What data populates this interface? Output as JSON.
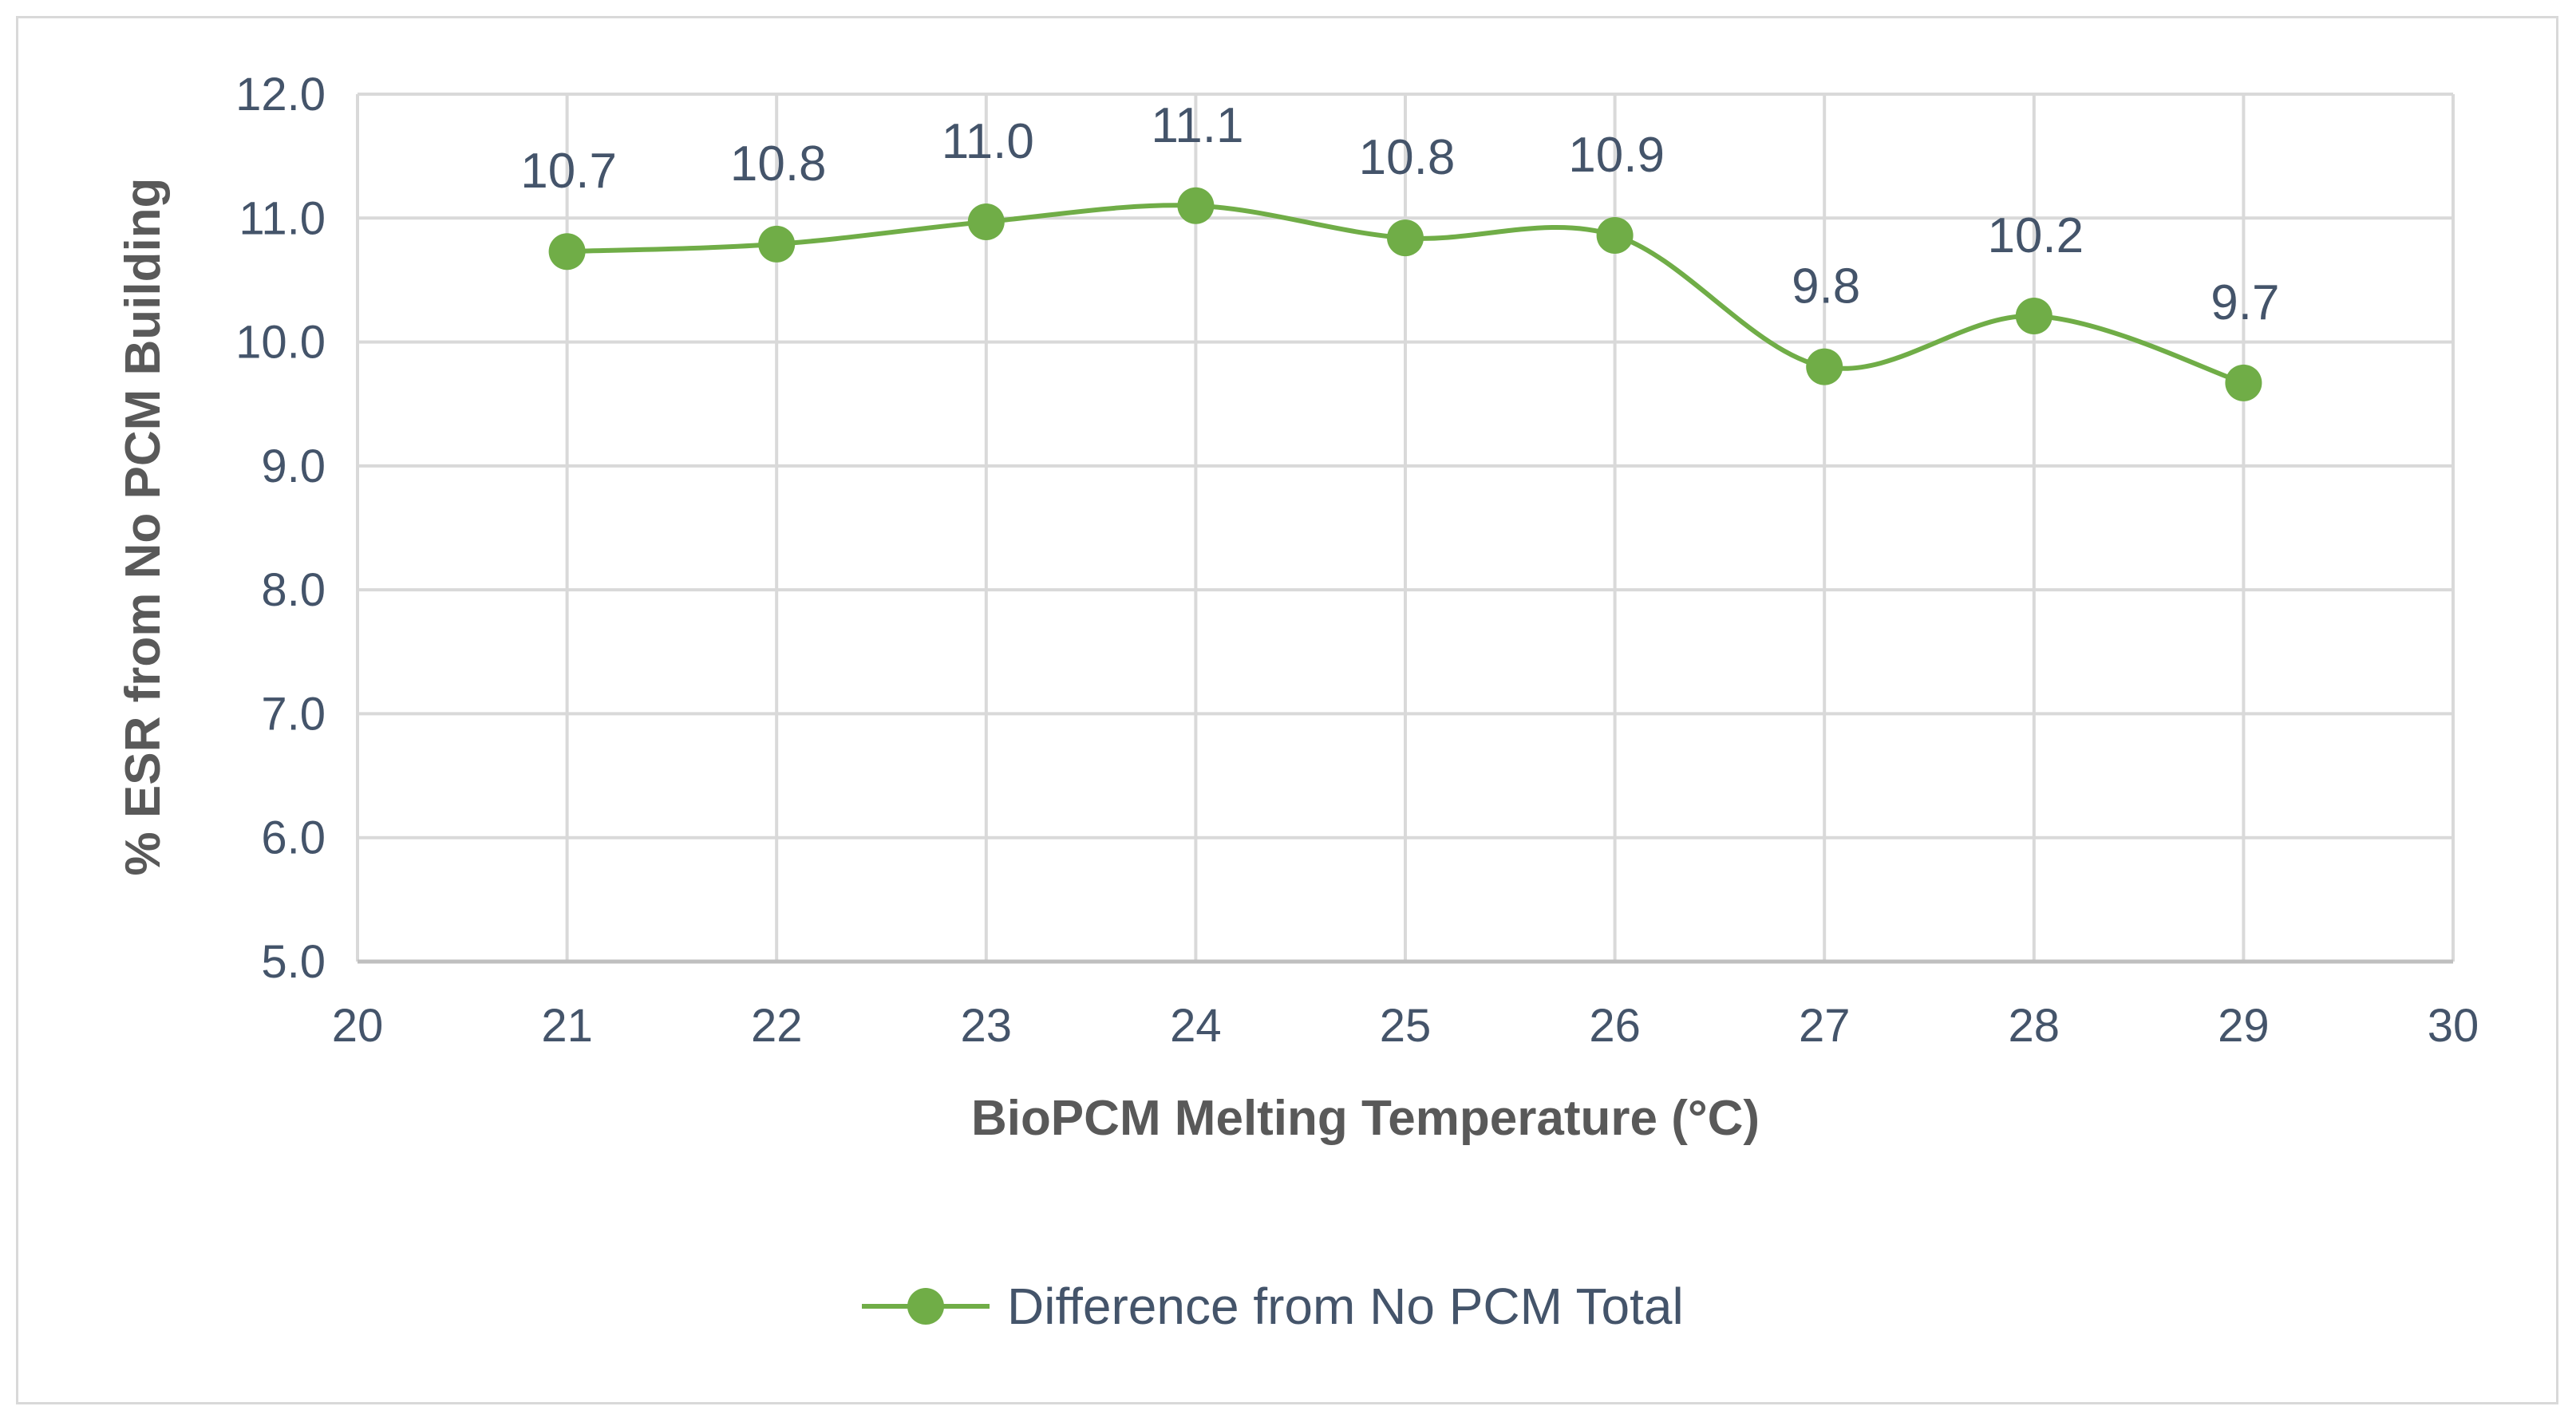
{
  "chart_data": {
    "type": "line",
    "title": "",
    "xlabel": "BioPCM Melting Temperature (°C)",
    "ylabel": "% ESR from No PCM Building",
    "xlim": [
      20,
      30
    ],
    "ylim": [
      5.0,
      12.0
    ],
    "x_ticks": [
      20,
      21,
      22,
      23,
      24,
      25,
      26,
      27,
      28,
      29,
      30
    ],
    "y_ticks": [
      "5.0",
      "6.0",
      "7.0",
      "8.0",
      "9.0",
      "10.0",
      "11.0",
      "12.0"
    ],
    "grid": true,
    "smooth": true,
    "legend_position": "bottom",
    "series": [
      {
        "name": "Difference from No PCM Total",
        "color": "#70ad47",
        "x": [
          21,
          22,
          23,
          24,
          25,
          26,
          27,
          28,
          29
        ],
        "values": [
          10.73,
          10.79,
          10.97,
          11.1,
          10.84,
          10.86,
          9.8,
          10.21,
          9.67
        ],
        "labels": [
          "10.7",
          "10.8",
          "11.0",
          "11.1",
          "10.8",
          "10.9",
          "9.8",
          "10.2",
          "9.7"
        ]
      }
    ]
  }
}
